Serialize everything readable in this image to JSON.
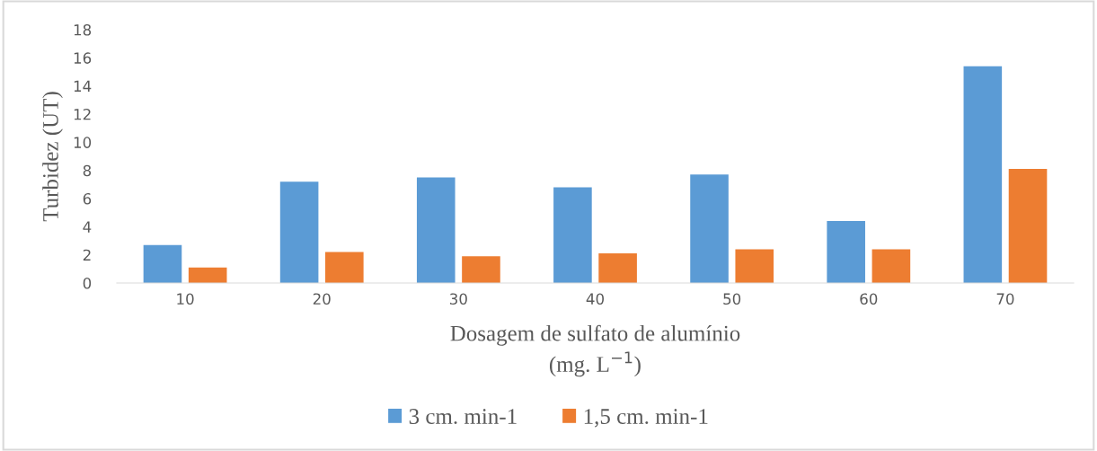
{
  "chart_data": {
    "type": "bar",
    "xlabel": "Dosagem de sulfato de alumínio\n(mg. L$^{−1}$)",
    "ylabel": "Turbidez (UT)",
    "categories": [
      "10",
      "20",
      "30",
      "40",
      "50",
      "60",
      "70"
    ],
    "series": [
      {
        "name": "3 cm. min-1",
        "color": "#5b9bd5",
        "values": [
          2.7,
          7.2,
          7.5,
          6.8,
          7.7,
          4.4,
          15.4
        ]
      },
      {
        "name": "1,5 cm. min-1",
        "color": "#ed7d31",
        "values": [
          1.1,
          2.2,
          1.9,
          2.1,
          2.4,
          2.4,
          8.1
        ]
      }
    ],
    "ylim": [
      0,
      18
    ],
    "yticks": [
      0,
      2,
      4,
      6,
      8,
      10,
      12,
      14,
      16,
      18
    ],
    "grid": false,
    "legend": "bottom"
  }
}
